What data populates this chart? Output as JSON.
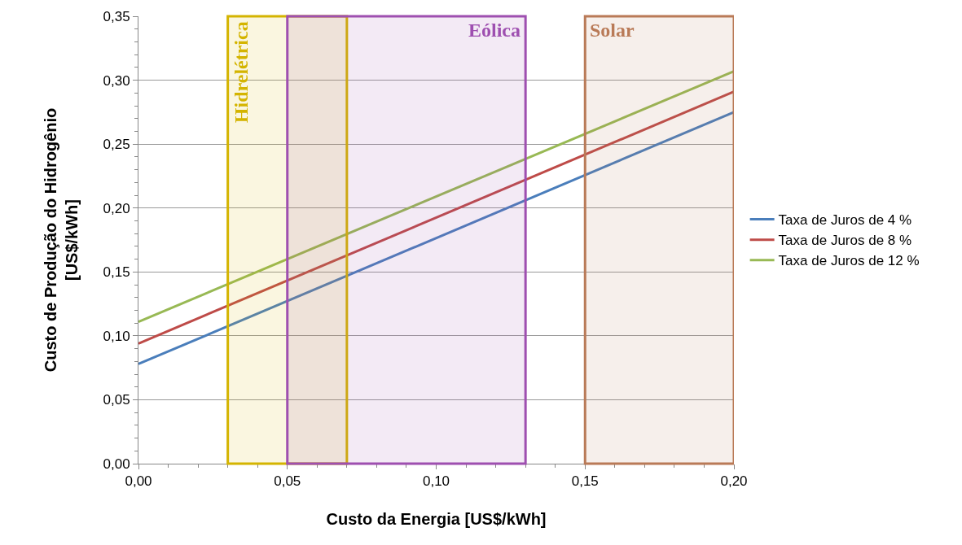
{
  "chart_data": {
    "type": "line",
    "xlabel": "Custo da Energia [US$/kWh]",
    "ylabel": "Custo de Produção do Hidrogênio\n[US$/kWh]",
    "x": [
      0,
      0.2
    ],
    "series": [
      {
        "name": "Taxa de Juros de 4 %",
        "color": "#4a7ebb",
        "values": [
          0.078,
          0.275
        ]
      },
      {
        "name": "Taxa de Juros de 8 %",
        "color": "#be4b48",
        "values": [
          0.094,
          0.291
        ]
      },
      {
        "name": "Taxa de Juros de 12 %",
        "color": "#98b954",
        "values": [
          0.111,
          0.307
        ]
      }
    ],
    "bands": [
      {
        "axis": "x",
        "from": 0.03,
        "to": 0.07,
        "label": "Hidrelétrica",
        "color": "#d4b400"
      },
      {
        "axis": "x",
        "from": 0.05,
        "to": 0.13,
        "label": "Eólica",
        "color": "#9e4fb0"
      },
      {
        "axis": "x",
        "from": 0.15,
        "to": 0.2,
        "label": "Solar",
        "color": "#b97a57"
      }
    ],
    "xlim": [
      0,
      0.2
    ],
    "xticks": [
      {
        "value": 0,
        "label": "0,00"
      },
      {
        "value": 0.05,
        "label": "0,05"
      },
      {
        "value": 0.1,
        "label": "0,10"
      },
      {
        "value": 0.15,
        "label": "0,15"
      },
      {
        "value": 0.2,
        "label": "0,20"
      }
    ],
    "ylim": [
      0,
      0.35
    ],
    "yticks": [
      {
        "value": 0,
        "label": "0,00"
      },
      {
        "value": 0.05,
        "label": "0,05"
      },
      {
        "value": 0.1,
        "label": "0,10"
      },
      {
        "value": 0.15,
        "label": "0,15"
      },
      {
        "value": 0.2,
        "label": "0,20"
      },
      {
        "value": 0.25,
        "label": "0,25"
      },
      {
        "value": 0.3,
        "label": "0,30"
      },
      {
        "value": 0.35,
        "label": "0,35"
      }
    ],
    "grid": "y",
    "legend": "right",
    "marker": "none",
    "line_style": "solid"
  }
}
